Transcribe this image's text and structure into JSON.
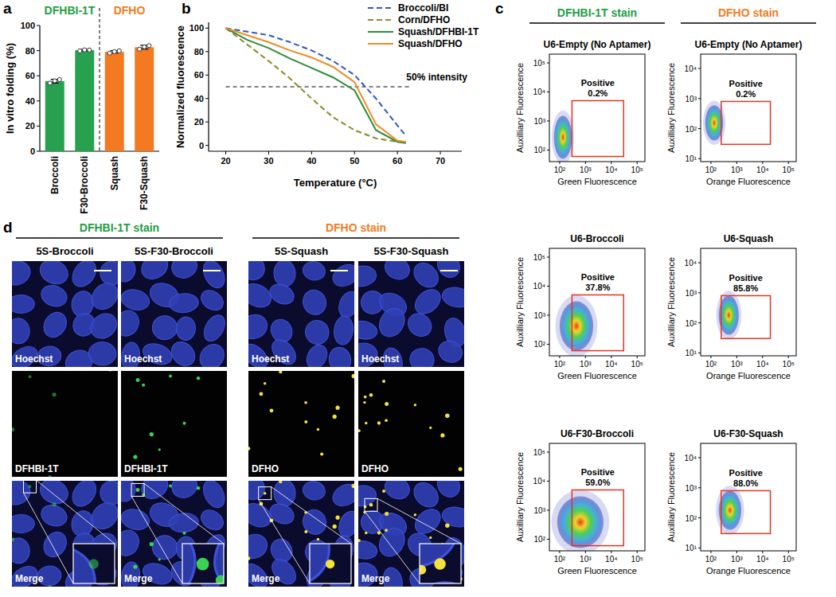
{
  "panel_labels": [
    "a",
    "b",
    "c",
    "d"
  ],
  "chart_data": [
    {
      "type": "bar",
      "ylabel": "In vitro folding (%)",
      "group_labels": [
        {
          "text": "DFHBI-1T",
          "color": "#1f9d45"
        },
        {
          "text": "DFHO",
          "color": "#f07c22"
        }
      ],
      "categories": [
        "Broccoli",
        "F30-Broccoli",
        "Squash",
        "F30-Squash"
      ],
      "values": [
        55.7,
        80.3,
        79.0,
        82.7
      ],
      "errors": [
        1.5,
        0.6,
        1.0,
        1.5
      ],
      "replicates": [
        [
          54.2,
          56.0,
          57.0
        ],
        [
          79.8,
          80.6,
          80.5
        ],
        [
          78.0,
          79.2,
          79.8
        ],
        [
          81.2,
          83.0,
          84.0
        ]
      ],
      "colors": [
        "#27a150",
        "#27a150",
        "#f37a21",
        "#f37a21"
      ],
      "ylim": [
        0,
        100
      ],
      "yticks": [
        0,
        20,
        40,
        60,
        80,
        100
      ]
    },
    {
      "type": "line",
      "xlabel": "Temperature (°C)",
      "ylabel": "Normalized fluorescence",
      "x": [
        20,
        25,
        30,
        35,
        40,
        45,
        50,
        55,
        60,
        62
      ],
      "series": [
        {
          "name": "Broccoli/BI",
          "color": "#3057b8",
          "line_style": "dashed",
          "values": [
            100,
            97,
            94,
            88,
            81,
            72,
            60,
            40,
            17,
            8
          ]
        },
        {
          "name": "Corn/DFHO",
          "color": "#8a8a2a",
          "line_style": "dashed",
          "values": [
            100,
            86,
            72,
            57,
            40,
            24,
            13,
            6,
            3,
            3
          ]
        },
        {
          "name": "Squash/DFHBI-1T",
          "color": "#2e8b3a",
          "line_style": "solid",
          "values": [
            100,
            90,
            83,
            74,
            66,
            58,
            47,
            13,
            3,
            2
          ]
        },
        {
          "name": "Squash/DFHO",
          "color": "#f08a24",
          "line_style": "solid",
          "values": [
            100,
            94,
            88,
            81,
            75,
            67,
            54,
            18,
            4,
            3
          ]
        }
      ],
      "xlim": [
        16,
        75
      ],
      "xticks": [
        20,
        30,
        40,
        50,
        60,
        70
      ],
      "ylim": [
        -5,
        105
      ],
      "yticks": [
        0,
        20,
        40,
        60,
        80,
        100
      ],
      "legend": "top-right",
      "reference": {
        "y": 50,
        "x": [
          20,
          63
        ],
        "label": "50% intensity"
      }
    },
    {
      "type": "scatter",
      "log": true,
      "title": "U6-Empty (No Aptamer)",
      "xlabel": "Green Fluorescence",
      "ylabel": "Auxilliary Fluorescence",
      "xlim": [
        40,
        200000
      ],
      "ylim": [
        40,
        200000
      ],
      "xticks": [
        {
          "value": 100,
          "label": "10²"
        },
        {
          "value": 1000,
          "label": "10³"
        },
        {
          "value": 10000,
          "label": "10⁴"
        },
        {
          "value": 100000,
          "label": "10⁵"
        }
      ],
      "yticks": [
        {
          "value": 100,
          "label": "10²"
        },
        {
          "value": 1000,
          "label": "10³"
        },
        {
          "value": 10000,
          "label": "10⁴"
        },
        {
          "value": 100000,
          "label": "10⁵"
        }
      ],
      "gate": {
        "x": [
          300,
          30000
        ],
        "y": [
          60,
          5000
        ],
        "label": "Positive",
        "percent": {
          "value": 0.2,
          "label": "0.2%"
        }
      },
      "cloud": {
        "x": [
          60,
          300
        ],
        "y": [
          50,
          1500
        ]
      },
      "color": "#e53322"
    },
    {
      "type": "scatter",
      "log": true,
      "title": "U6-Broccoli",
      "xlabel": "Green Fluorescence",
      "ylabel": "Auxilliary Fluorescence",
      "xlim": [
        40,
        200000
      ],
      "ylim": [
        40,
        200000
      ],
      "xticks": [
        {
          "value": 100,
          "label": "10²"
        },
        {
          "value": 1000,
          "label": "10³"
        },
        {
          "value": 10000,
          "label": "10⁴"
        },
        {
          "value": 100000,
          "label": "10⁵"
        }
      ],
      "yticks": [
        {
          "value": 100,
          "label": "10²"
        },
        {
          "value": 1000,
          "label": "10³"
        },
        {
          "value": 10000,
          "label": "10⁴"
        },
        {
          "value": 100000,
          "label": "10⁵"
        }
      ],
      "gate": {
        "x": [
          300,
          30000
        ],
        "y": [
          60,
          5000
        ],
        "label": "Positive",
        "percent": {
          "value": 37.8,
          "label": "37.8%"
        }
      },
      "cloud": {
        "x": [
          100,
          2000
        ],
        "y": [
          60,
          3000
        ]
      },
      "color": "#e53322"
    },
    {
      "type": "scatter",
      "log": true,
      "title": "U6-F30-Broccoli",
      "xlabel": "Green Fluorescence",
      "ylabel": "Auxilliary Fluorescence",
      "xlim": [
        40,
        200000
      ],
      "ylim": [
        40,
        200000
      ],
      "xticks": [
        {
          "value": 100,
          "label": "10²"
        },
        {
          "value": 1000,
          "label": "10³"
        },
        {
          "value": 10000,
          "label": "10⁴"
        },
        {
          "value": 100000,
          "label": "10⁵"
        }
      ],
      "yticks": [
        {
          "value": 100,
          "label": "10²"
        },
        {
          "value": 1000,
          "label": "10³"
        },
        {
          "value": 10000,
          "label": "10⁴"
        },
        {
          "value": 100000,
          "label": "10⁵"
        }
      ],
      "gate": {
        "x": [
          300,
          30000
        ],
        "y": [
          60,
          5000
        ],
        "label": "Positive",
        "percent": {
          "value": 59.0,
          "label": "59.0%"
        }
      },
      "cloud": {
        "x": [
          80,
          5000
        ],
        "y": [
          50,
          3000
        ]
      },
      "color": "#e53322"
    },
    {
      "type": "scatter",
      "log": true,
      "title": "U6-Empty (No Aptamer)",
      "xlabel": "Orange Fluorescence",
      "ylabel": "Auxilliary Fluorescence",
      "xlim": [
        40,
        200000
      ],
      "ylim": [
        8,
        30000
      ],
      "xticks": [
        {
          "value": 100,
          "label": "10²"
        },
        {
          "value": 1000,
          "label": "10³"
        },
        {
          "value": 10000,
          "label": "10⁴"
        },
        {
          "value": 100000,
          "label": "10⁵"
        }
      ],
      "yticks": [
        {
          "value": 10,
          "label": "10¹"
        },
        {
          "value": 100,
          "label": "10²"
        },
        {
          "value": 1000,
          "label": "10³"
        },
        {
          "value": 10000,
          "label": "10⁴"
        }
      ],
      "gate": {
        "x": [
          250,
          20000
        ],
        "y": [
          30,
          800
        ],
        "label": "Positive",
        "percent": {
          "value": 0.2,
          "label": "0.2%"
        }
      },
      "cloud": {
        "x": [
          60,
          300
        ],
        "y": [
          40,
          600
        ]
      },
      "color": "#e53322"
    },
    {
      "type": "scatter",
      "log": true,
      "title": "U6-Squash",
      "xlabel": "Orange Fluorescence",
      "ylabel": "Auxilliary Fluorescence",
      "xlim": [
        40,
        200000
      ],
      "ylim": [
        8,
        30000
      ],
      "xticks": [
        {
          "value": 100,
          "label": "10²"
        },
        {
          "value": 1000,
          "label": "10³"
        },
        {
          "value": 10000,
          "label": "10⁴"
        },
        {
          "value": 100000,
          "label": "10⁵"
        }
      ],
      "yticks": [
        {
          "value": 10,
          "label": "10¹"
        },
        {
          "value": 100,
          "label": "10²"
        },
        {
          "value": 1000,
          "label": "10³"
        },
        {
          "value": 10000,
          "label": "10⁴"
        }
      ],
      "gate": {
        "x": [
          250,
          20000
        ],
        "y": [
          30,
          800
        ],
        "label": "Positive",
        "percent": {
          "value": 85.8,
          "label": "85.8%"
        }
      },
      "cloud": {
        "x": [
          200,
          1200
        ],
        "y": [
          40,
          800
        ]
      },
      "color": "#e53322"
    },
    {
      "type": "scatter",
      "log": true,
      "title": "U6-F30-Squash",
      "xlabel": "Orange Fluorescence",
      "ylabel": "Auxilliary Fluorescence",
      "xlim": [
        40,
        200000
      ],
      "ylim": [
        8,
        30000
      ],
      "xticks": [
        {
          "value": 100,
          "label": "10²"
        },
        {
          "value": 1000,
          "label": "10³"
        },
        {
          "value": 10000,
          "label": "10⁴"
        },
        {
          "value": 100000,
          "label": "10⁵"
        }
      ],
      "yticks": [
        {
          "value": 10,
          "label": "10¹"
        },
        {
          "value": 100,
          "label": "10²"
        },
        {
          "value": 1000,
          "label": "10³"
        },
        {
          "value": 10000,
          "label": "10⁴"
        }
      ],
      "gate": {
        "x": [
          250,
          20000
        ],
        "y": [
          30,
          800
        ],
        "label": "Positive",
        "percent": {
          "value": 88.0,
          "label": "88.0%"
        }
      },
      "cloud": {
        "x": [
          200,
          1500
        ],
        "y": [
          40,
          800
        ]
      },
      "color": "#e53322"
    }
  ],
  "flow_headers": [
    {
      "text": "DFHBI-1T stain",
      "color": "#1f9d45"
    },
    {
      "text": "DFHO stain",
      "color": "#f07c22"
    }
  ],
  "microscopy": {
    "headers": [
      {
        "text": "DFHBI-1T stain",
        "color": "#1f9d45"
      },
      {
        "text": "DFHO stain",
        "color": "#f07c22"
      }
    ],
    "columns": [
      {
        "title": "5S-Broccoli",
        "stain": "DFHBI-1T",
        "color": "#39d353"
      },
      {
        "title": "5S-F30-Broccoli",
        "stain": "DFHBI-1T",
        "color": "#39d353"
      },
      {
        "title": "5S-Squash",
        "stain": "DFHO",
        "color": "#f2e23a"
      },
      {
        "title": "5S-F30-Squash",
        "stain": "DFHO",
        "color": "#f2e23a"
      }
    ],
    "nuclear_label": "Hoechst",
    "merge_label": "Merge"
  }
}
